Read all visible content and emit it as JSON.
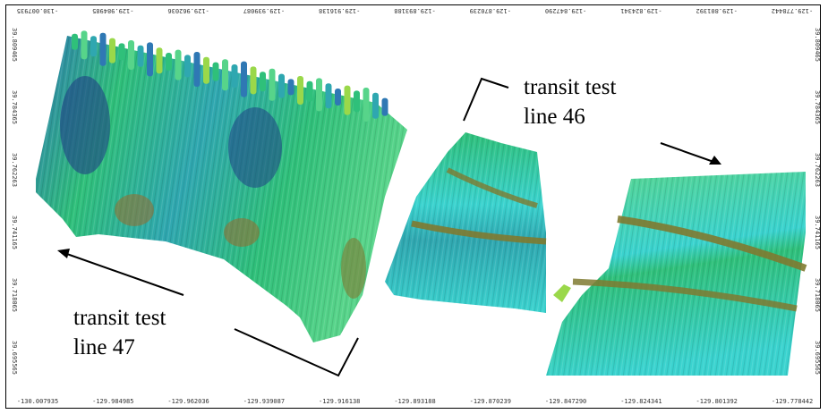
{
  "map": {
    "colors": {
      "deep": "#1f3f86",
      "mid_blue": "#2f78b4",
      "teal": "#2fa7b0",
      "cyan": "#3ad3cf",
      "green": "#2fc07a",
      "light_green": "#57d48a",
      "yellow_green": "#9ad84a",
      "olive": "#7f7a30",
      "brown": "#9a6a2a"
    },
    "axes": {
      "bottom_ticks": [
        "-130.007935",
        "-129.984985",
        "-129.962036",
        "-129.939087",
        "-129.916138",
        "-129.893188",
        "-129.870239",
        "-129.847290",
        "-129.824341",
        "-129.801392",
        "-129.778442"
      ],
      "top_ticks": [
        "-130.007935",
        "-129.984985",
        "-129.962036",
        "-129.939087",
        "-129.916138",
        "-129.893188",
        "-129.870239",
        "-129.847290",
        "-129.824341",
        "-129.801392",
        "-129.778442"
      ],
      "left_ticks": [
        "39.809465",
        "39.784365",
        "39.762263",
        "39.741165",
        "39.718065",
        "39.695565"
      ],
      "right_ticks": [
        "39.809465",
        "39.784365",
        "39.762263",
        "39.741165",
        "39.718065",
        "39.695565"
      ]
    },
    "annotations": [
      {
        "line1": "transit test",
        "line2": "line 46"
      },
      {
        "line1": "transit test",
        "line2": "line 47"
      }
    ]
  }
}
